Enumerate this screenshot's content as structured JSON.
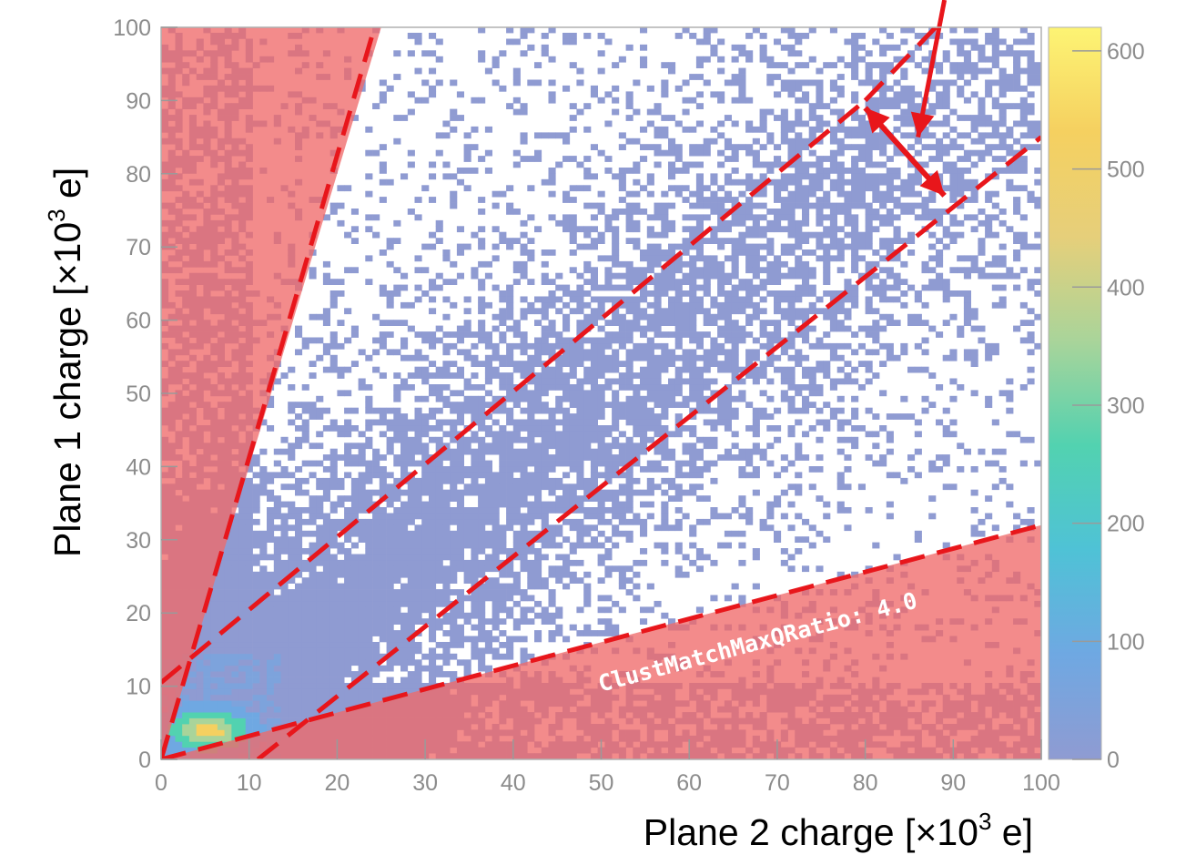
{
  "chart_data": {
    "type": "heatmap",
    "title": "",
    "xlabel": {
      "prefix": "Plane 2 charge [×10",
      "exp": "3",
      "suffix": " e]"
    },
    "ylabel": {
      "prefix": "Plane 1 charge [×10",
      "exp": "3",
      "suffix": " e]"
    },
    "xlim": [
      0,
      100
    ],
    "ylim": [
      0,
      100
    ],
    "x_ticks": [
      0,
      10,
      20,
      30,
      40,
      50,
      60,
      70,
      80,
      90,
      100
    ],
    "y_ticks": [
      0,
      10,
      20,
      30,
      40,
      50,
      60,
      70,
      80,
      90,
      100
    ],
    "x_tick_labels": [
      "0",
      "10",
      "20",
      "30",
      "40",
      "50",
      "60",
      "70",
      "80",
      "90",
      "100"
    ],
    "y_tick_labels": [
      "0",
      "10",
      "20",
      "30",
      "40",
      "50",
      "60",
      "70",
      "80",
      "90",
      "100"
    ],
    "colorbar": {
      "range": [
        0,
        620
      ],
      "ticks": [
        0,
        100,
        200,
        300,
        400,
        500,
        600
      ],
      "tick_labels": [
        "0",
        "100",
        "200",
        "300",
        "400",
        "500",
        "600"
      ],
      "colors": [
        "#8f9bd2",
        "#6fa8e2",
        "#4fc2d6",
        "#52d2b0",
        "#a9d49a",
        "#e6cf7a",
        "#f5d060",
        "#fdf474"
      ]
    },
    "density_ridge": {
      "description_free": true,
      "line_through": [
        [
          0,
          0
        ],
        [
          100,
          100
        ]
      ],
      "peak": [
        5,
        3.5
      ]
    },
    "excluded_regions": [
      {
        "polygon": [
          [
            0,
            0
          ],
          [
            0,
            100
          ],
          [
            25,
            100
          ]
        ],
        "color": "#f06a6a"
      },
      {
        "polygon": [
          [
            0,
            0
          ],
          [
            100,
            32
          ],
          [
            100,
            0
          ]
        ],
        "color": "#f06a6a"
      }
    ],
    "cut_lines": [
      {
        "from": [
          0,
          0
        ],
        "to": [
          24,
          99
        ]
      },
      {
        "from": [
          0,
          0
        ],
        "to": [
          100,
          32
        ]
      },
      {
        "from": [
          0,
          10.5
        ],
        "to": [
          80,
          90
        ]
      },
      {
        "from": [
          11,
          0
        ],
        "to": [
          100,
          85
        ]
      },
      {
        "from": [
          80,
          90
        ],
        "to": [
          88,
          100
        ]
      }
    ],
    "annotation": {
      "text": "ClustMatchMaxQRatio: 4.0",
      "x": 68,
      "y": 15,
      "angle_data_slope": 0.32
    },
    "double_arrow": {
      "from": [
        80,
        89
      ],
      "to": [
        89,
        77
      ]
    },
    "pointer_arrow": {
      "from": [
        89,
        100
      ],
      "to": [
        86,
        85
      ]
    }
  }
}
